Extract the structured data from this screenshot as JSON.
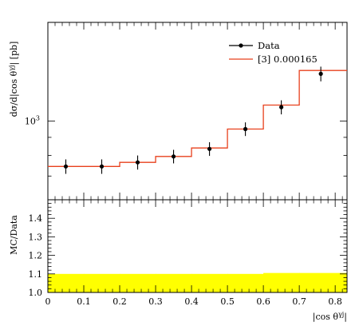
{
  "chart_data": [
    {
      "type": "line",
      "title": "",
      "xlabel": "|cos θγj|",
      "ylabel": "dσ/d|cos θγj| [pb]",
      "yscale": "log",
      "xlim": [
        0,
        0.833
      ],
      "ylim": [
        600,
        1900
      ],
      "grid": false,
      "legend_position": "top-right",
      "y_tick_labels": [
        "10^3"
      ],
      "series": [
        {
          "name": "Data",
          "style": "markers-with-error-bars",
          "color": "#000000",
          "x": [
            0.05,
            0.15,
            0.25,
            0.35,
            0.45,
            0.55,
            0.65,
            0.76
          ],
          "y": [
            745,
            745,
            765,
            795,
            835,
            950,
            1095,
            1360
          ],
          "err": [
            35,
            35,
            35,
            35,
            37,
            42,
            50,
            65
          ]
        },
        {
          "name": "[3] 0.000165",
          "style": "histogram",
          "color": "#e8401c",
          "bin_edges": [
            0,
            0.1,
            0.2,
            0.3,
            0.4,
            0.5,
            0.6,
            0.7,
            0.833
          ],
          "values": [
            745,
            745,
            765,
            795,
            840,
            950,
            1110,
            1390
          ]
        }
      ]
    },
    {
      "type": "area",
      "title": "",
      "xlabel": "|cos θγj|",
      "ylabel": "MC/Data",
      "xlim": [
        0,
        0.833
      ],
      "ylim": [
        1.0,
        1.5
      ],
      "y_ticks": [
        1.0,
        1.1,
        1.2,
        1.3,
        1.4
      ],
      "x_ticks": [
        0,
        0.1,
        0.2,
        0.3,
        0.4,
        0.5,
        0.6,
        0.7,
        0.8
      ],
      "color": "#ffff00",
      "band": {
        "bin_edges": [
          0,
          0.1,
          0.2,
          0.3,
          0.4,
          0.5,
          0.6,
          0.7,
          0.833
        ],
        "upper": [
          1.1,
          1.1,
          1.1,
          1.1,
          1.1,
          1.1,
          1.105,
          1.105
        ],
        "lower": [
          1.0,
          1.0,
          1.0,
          1.0,
          1.0,
          1.0,
          1.0,
          1.0
        ]
      }
    }
  ]
}
